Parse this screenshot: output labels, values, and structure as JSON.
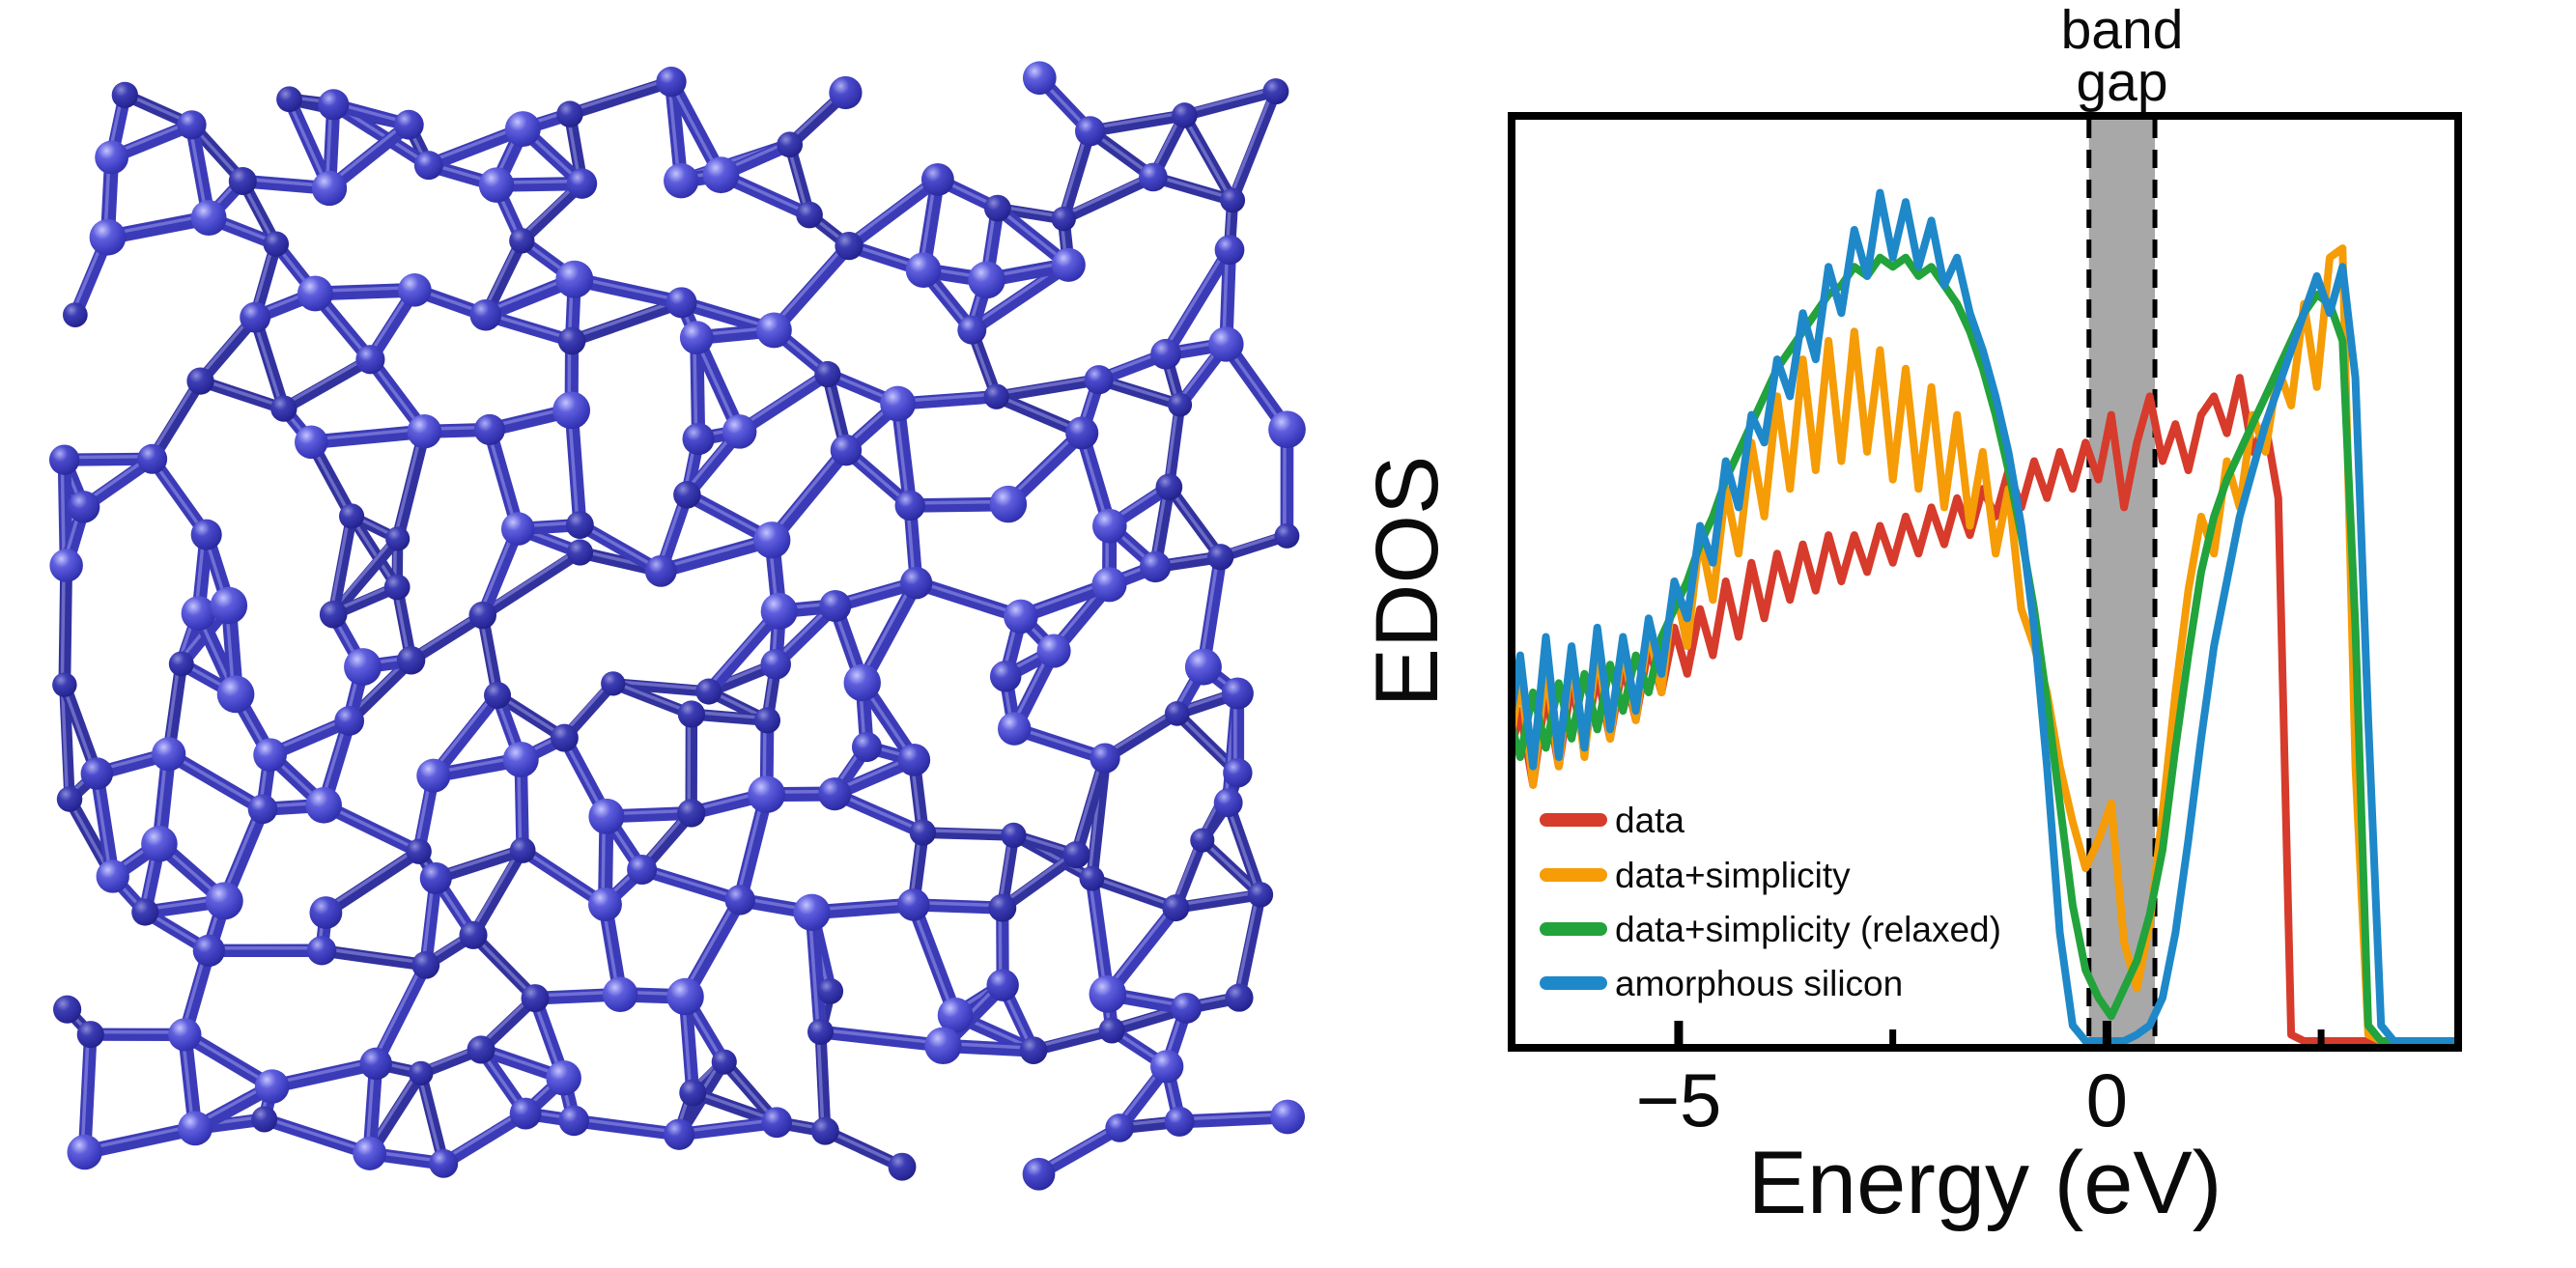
{
  "figure": {
    "background": "#ffffff"
  },
  "molecule": {
    "label": "amorphous silicon ball-and-stick structure",
    "colors": {
      "ball_light_hi": "#c4c4ff",
      "ball_light_body": "#5e5edd",
      "ball_light_edge": "#2e2ea8",
      "ball_mid_hi": "#aeaef5",
      "ball_mid_body": "#4a4acc",
      "ball_mid_edge": "#26269a",
      "ball_dark_hi": "#8a8ad8",
      "ball_dark_body": "#3d3db4",
      "ball_dark_edge": "#202085",
      "bond": "#3b3bb8",
      "bond_dark": "#32329e",
      "bond_sheen": "rgba(190,190,255,0.40)"
    }
  },
  "chart": {
    "annotation": {
      "line1": "band",
      "line2": "gap"
    },
    "ylabel": "EDOS",
    "xlabel": "Energy (eV)",
    "axis_color": "#000000",
    "legend": [
      {
        "label": "data",
        "color": "#d63b2c"
      },
      {
        "label": "data+simplicity",
        "color": "#f59c06"
      },
      {
        "label": "data+simplicity (relaxed)",
        "color": "#22a33c"
      },
      {
        "label": "amorphous silicon",
        "color": "#1e88c9"
      }
    ]
  },
  "chart_data": {
    "type": "line",
    "title": "",
    "xlabel": "Energy (eV)",
    "ylabel": "EDOS",
    "xlim": [
      -6.95,
      4.1
    ],
    "ylim": [
      0,
      1.0
    ],
    "grid": false,
    "legend_position": "lower left",
    "x_start": -7.0,
    "x_step": 0.15,
    "x_ticks_major": [
      {
        "value": -5,
        "label": "−5"
      },
      {
        "value": 0,
        "label": "0"
      }
    ],
    "x_ticks_minor": [
      -2.5,
      2.5
    ],
    "band_gap_region": {
      "from": -0.21,
      "to": 0.56,
      "fill": "#a8a8a8",
      "edge_style": "dashed",
      "edge_color": "#000000"
    },
    "series": [
      {
        "name": "data",
        "color": "#d63b2c",
        "values": [
          0.3,
          0.36,
          0.28,
          0.38,
          0.3,
          0.39,
          0.32,
          0.4,
          0.33,
          0.41,
          0.35,
          0.43,
          0.38,
          0.45,
          0.4,
          0.47,
          0.42,
          0.5,
          0.44,
          0.52,
          0.46,
          0.53,
          0.48,
          0.54,
          0.49,
          0.55,
          0.5,
          0.55,
          0.51,
          0.56,
          0.52,
          0.57,
          0.53,
          0.58,
          0.54,
          0.59,
          0.55,
          0.6,
          0.57,
          0.62,
          0.58,
          0.63,
          0.59,
          0.64,
          0.6,
          0.65,
          0.61,
          0.68,
          0.58,
          0.65,
          0.7,
          0.63,
          0.67,
          0.62,
          0.68,
          0.7,
          0.66,
          0.72,
          0.64,
          0.67,
          0.59,
          0.01,
          0.0,
          0.0,
          0.0,
          0.0,
          0.0,
          0.0,
          0.0,
          0.0,
          0.0,
          0.0,
          0.0,
          0.0,
          0.0
        ]
      },
      {
        "name": "data+simplicity",
        "color": "#f59c06",
        "values": [
          0.3,
          0.4,
          0.28,
          0.41,
          0.3,
          0.42,
          0.31,
          0.43,
          0.33,
          0.43,
          0.35,
          0.45,
          0.38,
          0.5,
          0.43,
          0.55,
          0.48,
          0.6,
          0.53,
          0.65,
          0.57,
          0.7,
          0.6,
          0.74,
          0.62,
          0.76,
          0.63,
          0.77,
          0.64,
          0.75,
          0.61,
          0.73,
          0.6,
          0.71,
          0.58,
          0.68,
          0.56,
          0.64,
          0.53,
          0.6,
          0.47,
          0.43,
          0.38,
          0.3,
          0.24,
          0.19,
          0.22,
          0.26,
          0.11,
          0.06,
          0.13,
          0.25,
          0.38,
          0.49,
          0.57,
          0.53,
          0.63,
          0.58,
          0.68,
          0.64,
          0.73,
          0.69,
          0.8,
          0.71,
          0.85,
          0.86,
          0.3,
          0.01,
          0.0,
          0.0,
          0.0,
          0.0,
          0.0,
          0.0,
          0.0
        ]
      },
      {
        "name": "data+simplicity (relaxed)",
        "color": "#22a33c",
        "values": [
          0.36,
          0.31,
          0.38,
          0.32,
          0.39,
          0.33,
          0.4,
          0.34,
          0.41,
          0.36,
          0.42,
          0.38,
          0.44,
          0.47,
          0.5,
          0.54,
          0.57,
          0.61,
          0.64,
          0.67,
          0.7,
          0.73,
          0.75,
          0.77,
          0.79,
          0.81,
          0.82,
          0.84,
          0.83,
          0.85,
          0.84,
          0.85,
          0.83,
          0.84,
          0.82,
          0.8,
          0.77,
          0.73,
          0.68,
          0.62,
          0.55,
          0.47,
          0.37,
          0.26,
          0.15,
          0.08,
          0.05,
          0.03,
          0.06,
          0.09,
          0.14,
          0.21,
          0.32,
          0.42,
          0.51,
          0.57,
          0.61,
          0.64,
          0.67,
          0.7,
          0.73,
          0.76,
          0.79,
          0.81,
          0.8,
          0.76,
          0.45,
          0.02,
          0.0,
          0.0,
          0.0,
          0.0,
          0.0,
          0.0,
          0.0
        ]
      },
      {
        "name": "amorphous silicon",
        "color": "#1e88c9",
        "values": [
          0.33,
          0.42,
          0.3,
          0.44,
          0.31,
          0.43,
          0.32,
          0.45,
          0.34,
          0.44,
          0.36,
          0.46,
          0.4,
          0.5,
          0.46,
          0.56,
          0.52,
          0.63,
          0.58,
          0.68,
          0.65,
          0.74,
          0.7,
          0.79,
          0.74,
          0.84,
          0.79,
          0.88,
          0.83,
          0.92,
          0.85,
          0.91,
          0.84,
          0.89,
          0.82,
          0.85,
          0.79,
          0.75,
          0.7,
          0.64,
          0.56,
          0.45,
          0.3,
          0.12,
          0.02,
          0.0,
          0.0,
          0.0,
          0.0,
          0.01,
          0.02,
          0.05,
          0.12,
          0.22,
          0.33,
          0.43,
          0.5,
          0.57,
          0.62,
          0.67,
          0.71,
          0.75,
          0.79,
          0.83,
          0.79,
          0.84,
          0.72,
          0.35,
          0.02,
          0.0,
          0.0,
          0.0,
          0.0,
          0.0,
          0.0
        ]
      }
    ]
  }
}
